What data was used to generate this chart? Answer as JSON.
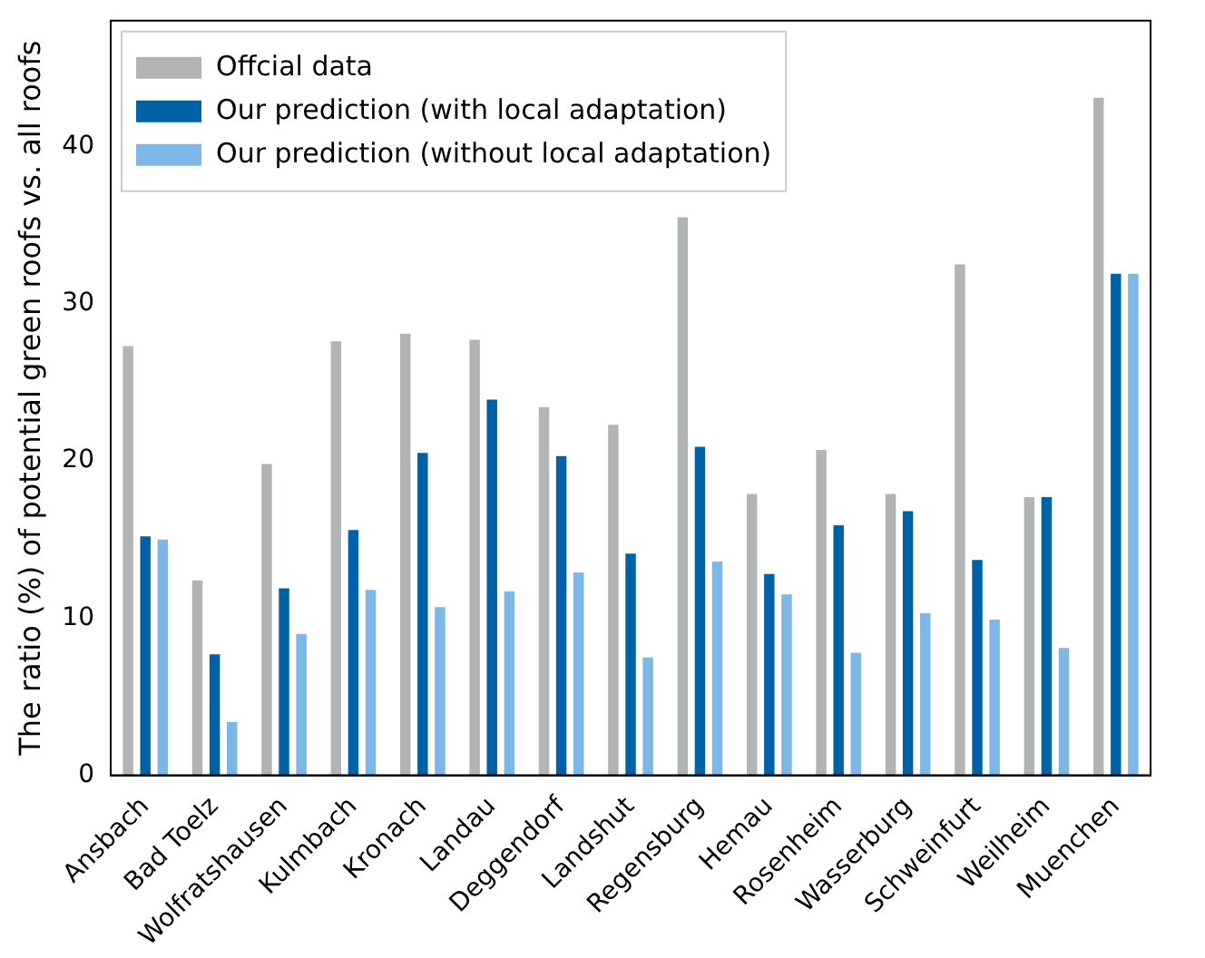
{
  "chart_data": {
    "type": "bar",
    "ylabel": "The ratio (%) of potential green roofs vs. all roofs",
    "categories": [
      "Ansbach",
      "Bad Toelz",
      "Wolfratshausen",
      "Kulmbach",
      "Kronach",
      "Landau",
      "Deggendorf",
      "Landshut",
      "Regensburg",
      "Hemau",
      "Rosenheim",
      "Wasserburg",
      "Schweinfurt",
      "Weilheim",
      "Muenchen"
    ],
    "series": [
      {
        "name": "Offcial data",
        "color": "#b1b3b4",
        "values": [
          27.3,
          12.4,
          19.8,
          27.6,
          28.1,
          27.7,
          23.4,
          22.3,
          35.5,
          17.9,
          20.7,
          17.9,
          32.5,
          17.7,
          43.1
        ]
      },
      {
        "name": "Our prediction (with local adaptation)",
        "color": "#0062a6",
        "values": [
          15.2,
          7.7,
          11.9,
          15.6,
          20.5,
          23.9,
          20.3,
          14.1,
          20.9,
          12.8,
          15.9,
          16.8,
          13.7,
          17.7,
          31.9
        ]
      },
      {
        "name": "Our prediction (without local adaptation)",
        "color": "#7db7e6",
        "values": [
          15.0,
          3.4,
          9.0,
          11.8,
          10.7,
          11.7,
          12.9,
          7.5,
          13.6,
          11.5,
          7.8,
          10.3,
          9.9,
          8.1,
          31.9
        ]
      }
    ],
    "ylim": [
      0,
      48
    ],
    "yticks": [
      0,
      10,
      20,
      30,
      40
    ],
    "grid": false,
    "legend": "top left"
  }
}
